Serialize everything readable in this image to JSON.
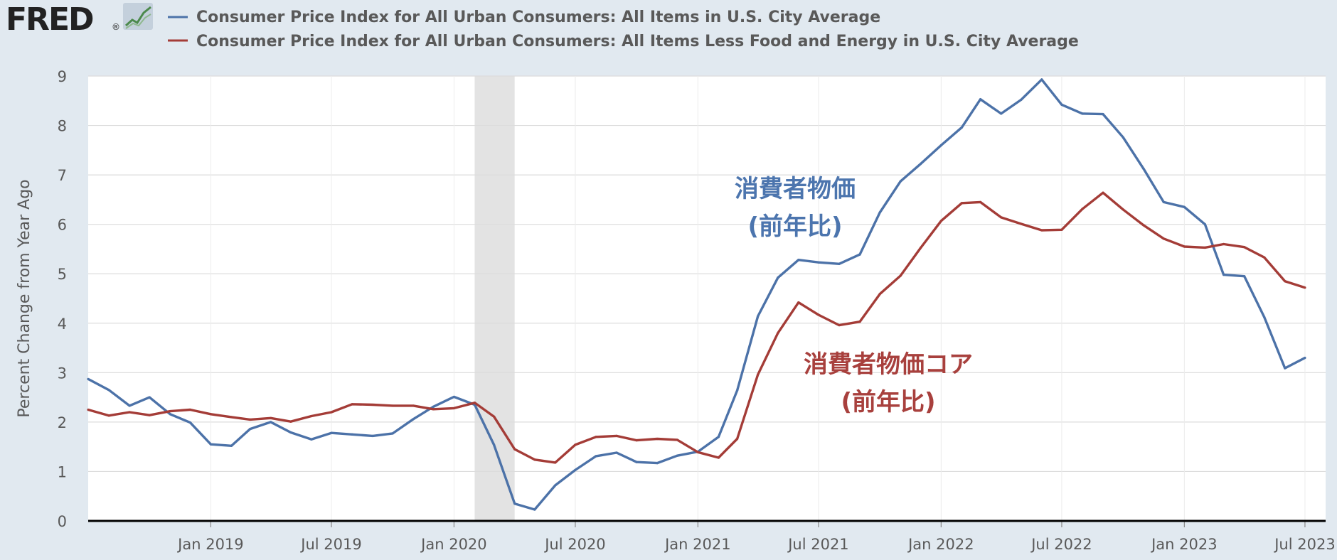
{
  "brand": {
    "logo": "FRED",
    "registered": "®"
  },
  "colors": {
    "cpi": "#4c72a8",
    "core": "#a43c37",
    "recession": "#e3e3e3",
    "grid": "#dcdcdc",
    "background": "#e1e9f0"
  },
  "annotations": {
    "cpi": [
      "消費者物価",
      "(前年比)"
    ],
    "core": [
      "消費者物価コア",
      "(前年比)"
    ]
  },
  "chart_data": {
    "type": "line",
    "title": "",
    "ylabel": "Percent Change from Year Ago",
    "ylim": [
      0,
      9
    ],
    "yticks": [
      0,
      1,
      2,
      3,
      4,
      5,
      6,
      7,
      8,
      9
    ],
    "xrange": [
      "2018-07-01",
      "2023-08-01"
    ],
    "xticks": [
      {
        "date": "2019-01-01",
        "label": "Jan 2019"
      },
      {
        "date": "2019-07-01",
        "label": "Jul 2019"
      },
      {
        "date": "2020-01-01",
        "label": "Jan 2020"
      },
      {
        "date": "2020-07-01",
        "label": "Jul 2020"
      },
      {
        "date": "2021-01-01",
        "label": "Jan 2021"
      },
      {
        "date": "2021-07-01",
        "label": "Jul 2021"
      },
      {
        "date": "2022-01-01",
        "label": "Jan 2022"
      },
      {
        "date": "2022-07-01",
        "label": "Jul 2022"
      },
      {
        "date": "2023-01-01",
        "label": "Jan 2023"
      },
      {
        "date": "2023-07-01",
        "label": "Jul 2023"
      }
    ],
    "recession": [
      "2020-02-01",
      "2020-04-01"
    ],
    "grid": true,
    "legend_position": "top",
    "dates": [
      "2018-07-01",
      "2018-08-01",
      "2018-09-01",
      "2018-10-01",
      "2018-11-01",
      "2018-12-01",
      "2019-01-01",
      "2019-02-01",
      "2019-03-01",
      "2019-04-01",
      "2019-05-01",
      "2019-06-01",
      "2019-07-01",
      "2019-08-01",
      "2019-09-01",
      "2019-10-01",
      "2019-11-01",
      "2019-12-01",
      "2020-01-01",
      "2020-02-01",
      "2020-03-01",
      "2020-04-01",
      "2020-05-01",
      "2020-06-01",
      "2020-07-01",
      "2020-08-01",
      "2020-09-01",
      "2020-10-01",
      "2020-11-01",
      "2020-12-01",
      "2021-01-01",
      "2021-02-01",
      "2021-03-01",
      "2021-04-01",
      "2021-05-01",
      "2021-06-01",
      "2021-07-01",
      "2021-08-01",
      "2021-09-01",
      "2021-10-01",
      "2021-11-01",
      "2021-12-01",
      "2022-01-01",
      "2022-02-01",
      "2022-03-01",
      "2022-04-01",
      "2022-05-01",
      "2022-06-01",
      "2022-07-01",
      "2022-08-01",
      "2022-09-01",
      "2022-10-01",
      "2022-11-01",
      "2022-12-01",
      "2023-01-01",
      "2023-02-01",
      "2023-03-01",
      "2023-04-01",
      "2023-05-01",
      "2023-06-01",
      "2023-07-01"
    ],
    "series": [
      {
        "name": "Consumer Price Index for All Urban Consumers: All Items in U.S. City Average",
        "values": [
          2.87,
          2.65,
          2.33,
          2.5,
          2.16,
          1.99,
          1.55,
          1.52,
          1.86,
          2.0,
          1.79,
          1.65,
          1.78,
          1.75,
          1.72,
          1.77,
          2.06,
          2.31,
          2.51,
          2.35,
          1.54,
          0.35,
          0.23,
          0.72,
          1.03,
          1.31,
          1.38,
          1.19,
          1.17,
          1.32,
          1.4,
          1.7,
          2.64,
          4.14,
          4.92,
          5.28,
          5.23,
          5.2,
          5.39,
          6.24,
          6.87,
          7.22,
          7.6,
          7.96,
          8.53,
          8.24,
          8.52,
          8.93,
          8.42,
          8.24,
          8.23,
          7.76,
          7.12,
          6.45,
          6.35,
          6.0,
          4.98,
          4.95,
          4.12,
          3.09,
          3.3
        ]
      },
      {
        "name": "Consumer Price Index for All Urban Consumers: All Items Less Food and Energy in U.S. City Average",
        "values": [
          2.25,
          2.13,
          2.2,
          2.14,
          2.22,
          2.25,
          2.16,
          2.1,
          2.05,
          2.08,
          2.01,
          2.12,
          2.2,
          2.36,
          2.35,
          2.33,
          2.33,
          2.26,
          2.28,
          2.39,
          2.11,
          1.45,
          1.24,
          1.18,
          1.54,
          1.7,
          1.72,
          1.63,
          1.66,
          1.64,
          1.39,
          1.28,
          1.66,
          2.96,
          3.8,
          4.42,
          4.17,
          3.96,
          4.03,
          4.59,
          4.96,
          5.52,
          6.07,
          6.43,
          6.45,
          6.14,
          6.01,
          5.88,
          5.89,
          6.31,
          6.64,
          6.3,
          5.98,
          5.71,
          5.55,
          5.53,
          5.6,
          5.54,
          5.33,
          4.85,
          4.72
        ]
      }
    ]
  }
}
